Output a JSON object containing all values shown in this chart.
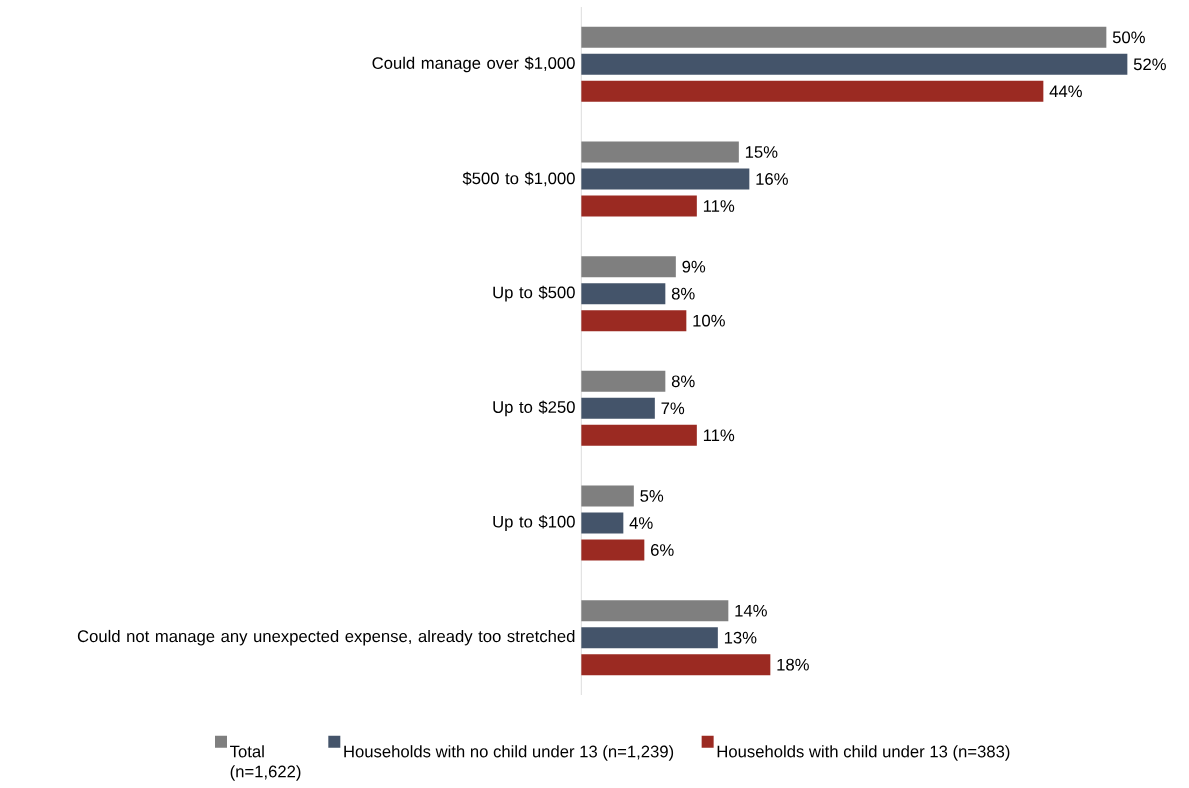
{
  "chart_data": {
    "type": "bar",
    "orientation": "horizontal",
    "legend": "bottom",
    "categories": [
      "Could manage over $1,000",
      "$500 to $1,000",
      "Up to $500",
      "Up to $250",
      "Up to $100",
      "Could not manage any unexpected expense, already too stretched"
    ],
    "series": [
      {
        "name": "Total (n=1,622)",
        "color": "#7f7f7f",
        "values": [
          50,
          15,
          9,
          8,
          5,
          14
        ],
        "value_labels": [
          "50%",
          "15%",
          "9%",
          "8%",
          "5%",
          "14%"
        ]
      },
      {
        "name": "Households with no child under 13 (n=1,239)",
        "color": "#44546a",
        "values": [
          52,
          16,
          8,
          7,
          4,
          13
        ],
        "value_labels": [
          "52%",
          "16%",
          "8%",
          "7%",
          "4%",
          "13%"
        ]
      },
      {
        "name": "Households with child under 13 (n=383)",
        "color": "#9b2a22",
        "values": [
          44,
          11,
          10,
          11,
          6,
          18
        ],
        "value_labels": [
          "44%",
          "11%",
          "10%",
          "11%",
          "6%",
          "18%"
        ]
      }
    ]
  }
}
